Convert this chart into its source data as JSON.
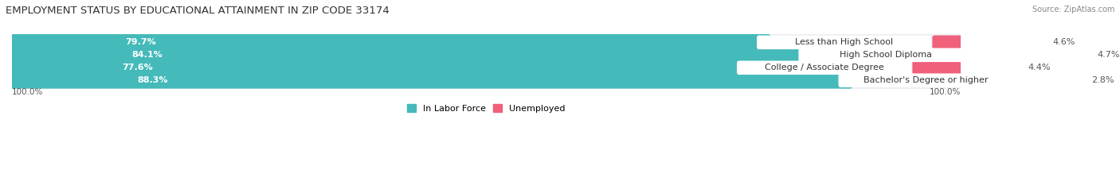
{
  "title": "EMPLOYMENT STATUS BY EDUCATIONAL ATTAINMENT IN ZIP CODE 33174",
  "source": "Source: ZipAtlas.com",
  "categories": [
    "Less than High School",
    "High School Diploma",
    "College / Associate Degree",
    "Bachelor's Degree or higher"
  ],
  "in_labor_force": [
    79.7,
    84.1,
    77.6,
    88.3
  ],
  "unemployed": [
    4.6,
    4.7,
    4.4,
    2.8
  ],
  "labor_force_color": "#45BABA",
  "unemployed_color": "#F0607A",
  "unemployed_light_color": "#F5A0B8",
  "row_bg_color": "#ECEDF2",
  "row_bg_color_alt": "#E2E3EA",
  "title_fontsize": 9.5,
  "source_fontsize": 7,
  "label_fontsize": 8,
  "bar_label_fontsize": 8,
  "axis_label_fontsize": 7.5,
  "legend_fontsize": 8,
  "x_left_label": "100.0%",
  "x_right_label": "100.0%"
}
